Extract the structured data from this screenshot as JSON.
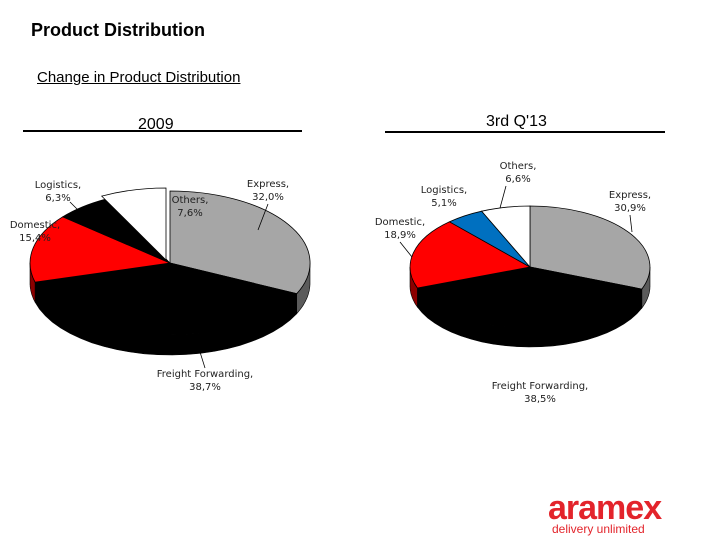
{
  "header": {
    "title": "Product Distribution",
    "subtitle": "Change in Product Distribution"
  },
  "chart_data": [
    {
      "type": "pie",
      "title": "2009",
      "slices": [
        {
          "label": "Express,",
          "value_text": "32,0%",
          "value": 32.0,
          "color": "#a6a6a6"
        },
        {
          "label": "Freight Forwarding,",
          "value_text": "38,7%",
          "value": 38.7,
          "color": "#000000"
        },
        {
          "label": "Domestic,",
          "value_text": "15,4%",
          "value": 15.4,
          "color": "#ff0000"
        },
        {
          "label": "Logistics,",
          "value_text": "6,3%",
          "value": 6.3,
          "color": "#000000"
        },
        {
          "label": "Others,",
          "value_text": "7,6%",
          "value": 7.6,
          "color": "#ffffff"
        }
      ]
    },
    {
      "type": "pie",
      "title": "3rd Q'13",
      "slices": [
        {
          "label": "Express,",
          "value_text": "30,9%",
          "value": 30.9,
          "color": "#a6a6a6"
        },
        {
          "label": "Freight Forwarding,",
          "value_text": "38,5%",
          "value": 38.5,
          "color": "#000000"
        },
        {
          "label": "Domestic,",
          "value_text": "18,9%",
          "value": 18.9,
          "color": "#ff0000"
        },
        {
          "label": "Logistics,",
          "value_text": "5,1%",
          "value": 5.1,
          "color": "#0070c0"
        },
        {
          "label": "Others,",
          "value_text": "6,6%",
          "value": 6.6,
          "color": "#ffffff"
        }
      ]
    }
  ],
  "logo": {
    "word": "aramex",
    "tagline": "delivery unlimited",
    "color": "#e3242b"
  }
}
